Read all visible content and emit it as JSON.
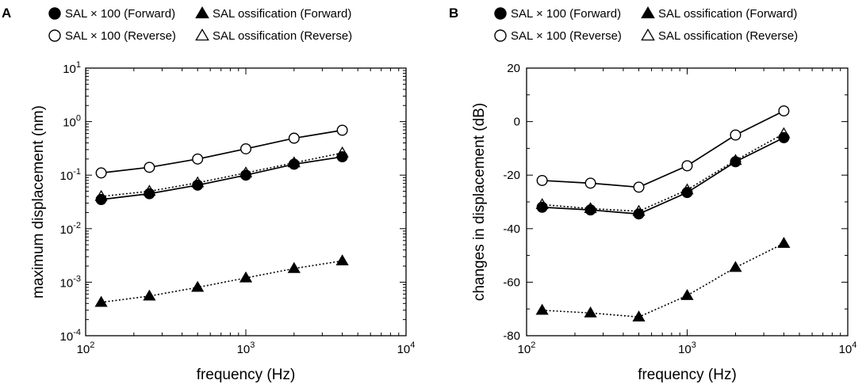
{
  "chart_data": [
    {
      "type": "line",
      "panel": "A",
      "xscale": "log",
      "yscale": "log",
      "xlabel": "frequency (Hz)",
      "ylabel": "maximum displacement (nm)",
      "x": [
        125,
        250,
        500,
        1000,
        2000,
        4000
      ],
      "xlim": [
        100,
        10000
      ],
      "ylim": [
        0.0001,
        10
      ],
      "xticks": [
        {
          "base": "10",
          "exp": "2"
        },
        {
          "base": "10",
          "exp": "3"
        },
        {
          "base": "10",
          "exp": "4"
        }
      ],
      "yticks": [
        {
          "base": "10",
          "exp": "-4"
        },
        {
          "base": "10",
          "exp": "-3"
        },
        {
          "base": "10",
          "exp": "-2"
        },
        {
          "base": "10",
          "exp": "-1"
        },
        {
          "base": "10",
          "exp": "0"
        },
        {
          "base": "10",
          "exp": "1"
        }
      ],
      "series": [
        {
          "name": "SAL × 100 (Forward)",
          "marker": "circle",
          "fill": "filled",
          "line": "solid",
          "values": [
            0.035,
            0.045,
            0.065,
            0.1,
            0.16,
            0.22
          ]
        },
        {
          "name": "SAL ossification (Forward)",
          "marker": "triangle",
          "fill": "filled",
          "line": "dotted",
          "values": [
            0.00042,
            0.00055,
            0.0008,
            0.0012,
            0.0018,
            0.0025
          ]
        },
        {
          "name": "SAL × 100 (Reverse)",
          "marker": "circle",
          "fill": "open",
          "line": "solid",
          "values": [
            0.11,
            0.14,
            0.2,
            0.31,
            0.49,
            0.69
          ]
        },
        {
          "name": "SAL ossification (Reverse)",
          "marker": "triangle",
          "fill": "open",
          "line": "dotted",
          "values": [
            0.04,
            0.05,
            0.072,
            0.11,
            0.17,
            0.26
          ]
        }
      ]
    },
    {
      "type": "line",
      "panel": "B",
      "xscale": "log",
      "yscale": "linear",
      "xlabel": "frequency (Hz)",
      "ylabel": "changes in displacement (dB)",
      "x": [
        125,
        250,
        500,
        1000,
        2000,
        4000
      ],
      "xlim": [
        100,
        10000
      ],
      "ylim": [
        -80,
        20
      ],
      "xticks": [
        {
          "base": "10",
          "exp": "2"
        },
        {
          "base": "10",
          "exp": "3"
        },
        {
          "base": "10",
          "exp": "4"
        }
      ],
      "yticks": [
        "-80",
        "-60",
        "-40",
        "-20",
        "0",
        "20"
      ],
      "series": [
        {
          "name": "SAL × 100 (Forward)",
          "marker": "circle",
          "fill": "filled",
          "line": "solid",
          "values": [
            -32,
            -33,
            -34.5,
            -26.5,
            -15,
            -6
          ]
        },
        {
          "name": "SAL ossification (Forward)",
          "marker": "triangle",
          "fill": "filled",
          "line": "dotted",
          "values": [
            -70.5,
            -71.5,
            -73,
            -65,
            -54.5,
            -45.5
          ]
        },
        {
          "name": "SAL × 100 (Reverse)",
          "marker": "circle",
          "fill": "open",
          "line": "solid",
          "values": [
            -22,
            -23,
            -24.5,
            -16.5,
            -5,
            4
          ]
        },
        {
          "name": "SAL ossification (Reverse)",
          "marker": "triangle",
          "fill": "open",
          "line": "dotted",
          "values": [
            -31,
            -32.5,
            -33.5,
            -25.5,
            -14.5,
            -4.5
          ]
        }
      ]
    }
  ],
  "legend": {
    "entries": [
      {
        "label": "SAL × 100 (Forward)",
        "marker": "circle",
        "fill": "filled"
      },
      {
        "label": "SAL ossification (Forward)",
        "marker": "triangle",
        "fill": "filled"
      },
      {
        "label": "SAL × 100 (Reverse)",
        "marker": "circle",
        "fill": "open"
      },
      {
        "label": "SAL ossification (Reverse)",
        "marker": "triangle",
        "fill": "open"
      }
    ]
  }
}
